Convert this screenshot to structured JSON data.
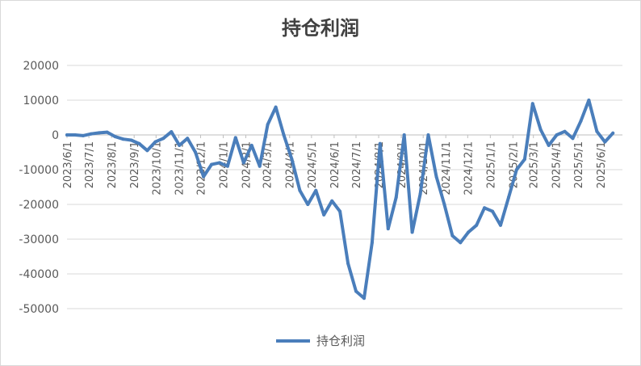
{
  "chart_data": {
    "type": "line",
    "title": "持仓利润",
    "xlabel": "",
    "ylabel": "",
    "ylim": [
      -50000,
      20000
    ],
    "yticks": [
      "20000",
      "10000",
      "0",
      "-10000",
      "-20000",
      "-30000",
      "-40000",
      "-50000"
    ],
    "x_tick_labels": [
      "2023/6/1",
      "2023/7/1",
      "2023/8/1",
      "2023/9/1",
      "2023/10/1",
      "2023/11/1",
      "2023/12/1",
      "2024/1/1",
      "2024/2/1",
      "2024/3/1",
      "2024/4/1",
      "2024/5/1",
      "2024/6/1",
      "2024/7/1",
      "2024/8/1",
      "2024/9/1",
      "2024/10/1",
      "2024/11/1",
      "2024/12/1",
      "2025/1/1",
      "2025/2/1",
      "2025/3/1",
      "2025/4/1",
      "2025/5/1",
      "2025/6/1"
    ],
    "grid": true,
    "legend_position": "bottom",
    "series": [
      {
        "name": "持仓利润",
        "color": "#4a7ebb",
        "x": [
          "2023/6/1",
          "2023/6/12",
          "2023/6/23",
          "2023/7/4",
          "2023/7/15",
          "2023/7/26",
          "2023/8/6",
          "2023/8/17",
          "2023/8/28",
          "2023/9/8",
          "2023/9/19",
          "2023/9/30",
          "2023/10/11",
          "2023/10/22",
          "2023/11/2",
          "2023/11/13",
          "2023/11/24",
          "2023/12/5",
          "2023/12/16",
          "2023/12/27",
          "2024/1/7",
          "2024/1/18",
          "2024/1/29",
          "2024/2/9",
          "2024/2/20",
          "2024/3/2",
          "2024/3/13",
          "2024/3/24",
          "2024/4/4",
          "2024/4/15",
          "2024/4/26",
          "2024/5/7",
          "2024/5/18",
          "2024/5/29",
          "2024/6/9",
          "2024/6/20",
          "2024/7/1",
          "2024/7/12",
          "2024/7/23",
          "2024/8/3",
          "2024/8/14",
          "2024/8/25",
          "2024/9/5",
          "2024/9/16",
          "2024/9/27",
          "2024/10/8",
          "2024/10/19",
          "2024/10/30",
          "2024/11/10",
          "2024/11/21",
          "2024/12/2",
          "2024/12/13",
          "2024/12/24",
          "2025/1/4",
          "2025/1/15",
          "2025/1/26",
          "2025/2/6",
          "2025/2/17",
          "2025/2/28",
          "2025/3/11",
          "2025/3/22",
          "2025/4/2",
          "2025/4/13",
          "2025/4/24",
          "2025/5/5",
          "2025/5/16",
          "2025/5/27",
          "2025/6/7",
          "2025/6/18"
        ],
        "values": [
          0,
          0,
          -200,
          300,
          600,
          800,
          -500,
          -1200,
          -1500,
          -2500,
          -4500,
          -2000,
          -1000,
          900,
          -3000,
          -1000,
          -5000,
          -12000,
          -8500,
          -8000,
          -9000,
          -800,
          -8000,
          -3000,
          -9000,
          3000,
          8000,
          0,
          -7000,
          -16000,
          -20000,
          -16000,
          -23000,
          -19000,
          -22000,
          -37000,
          -45000,
          -47000,
          -31000,
          -2500,
          -27000,
          -18000,
          0,
          -28000,
          -17000,
          0,
          -12000,
          -20000,
          -29000,
          -31000,
          -28000,
          -26000,
          -21000,
          -22000,
          -26000,
          -18000,
          -10000,
          -7000,
          9000,
          1500,
          -3000,
          0,
          1000,
          -1000,
          4000,
          10000,
          1000,
          -2000,
          500
        ]
      }
    ]
  },
  "legend": {
    "label": "持仓利润"
  }
}
